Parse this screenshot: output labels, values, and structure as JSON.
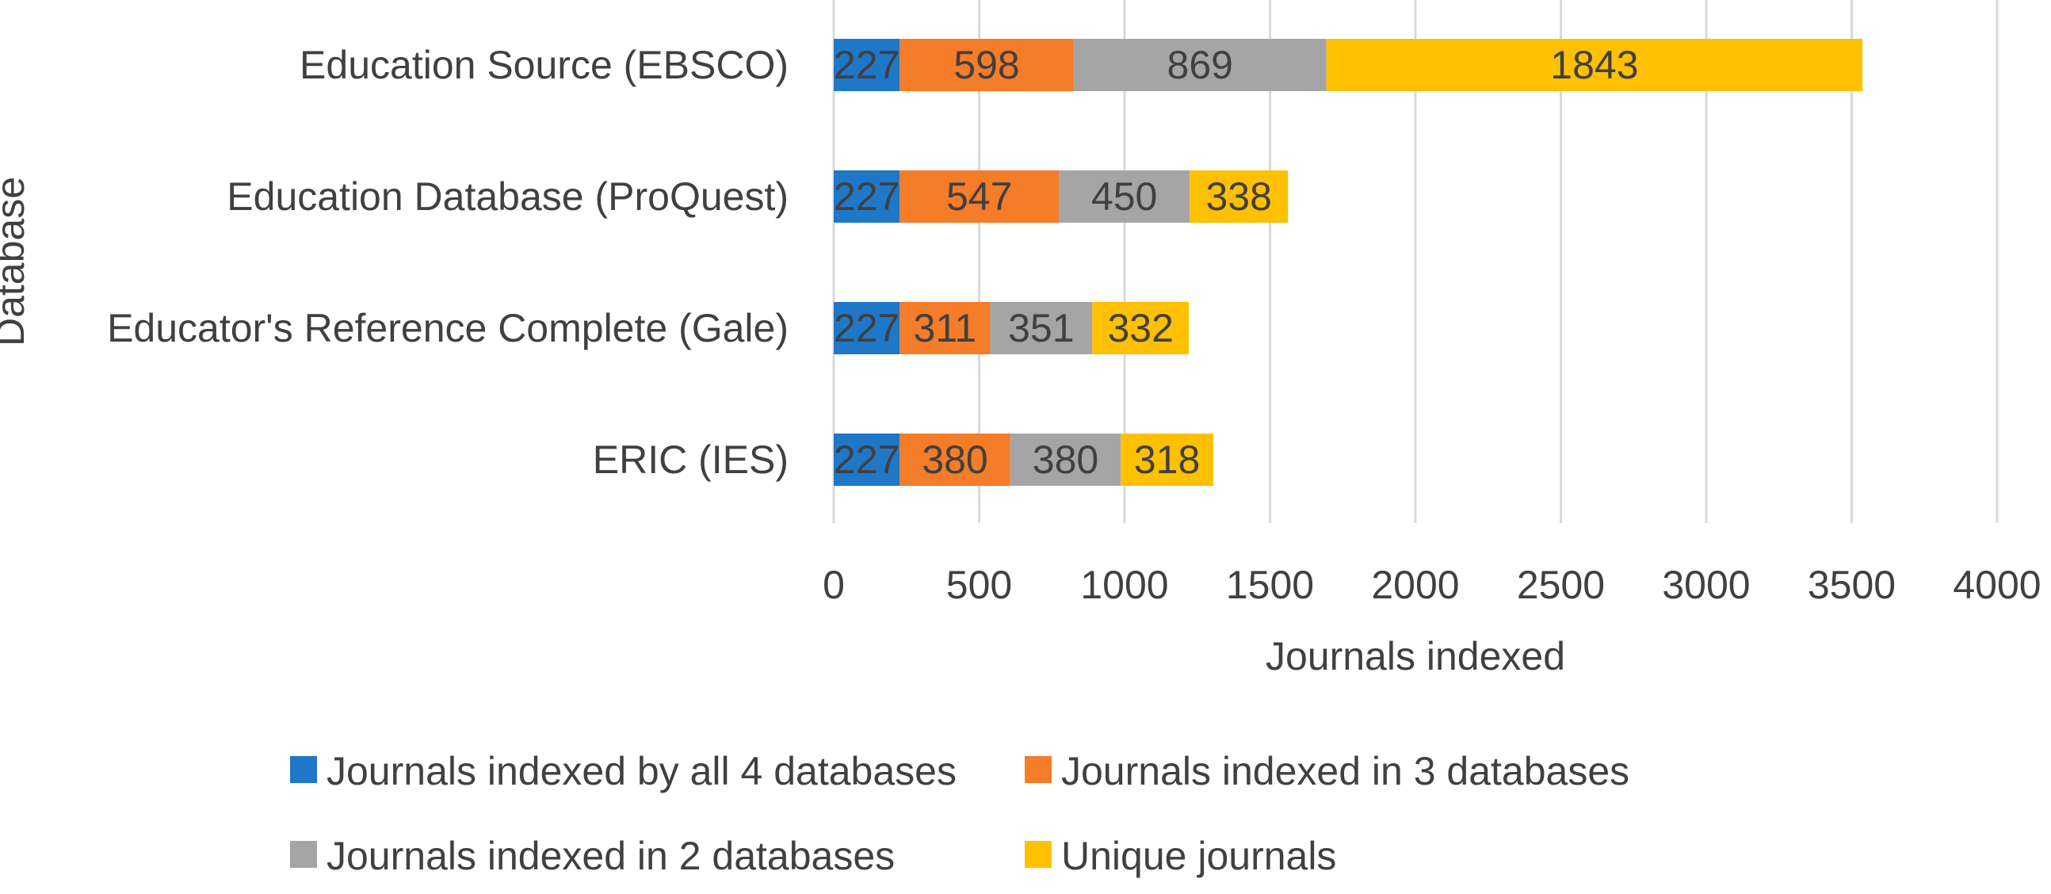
{
  "chart_data": {
    "type": "bar",
    "orientation": "horizontal",
    "stacked": true,
    "categories": [
      "Education Source (EBSCO)",
      "Education Database (ProQuest)",
      "Educator's Reference Complete (Gale)",
      "ERIC (IES)"
    ],
    "series": [
      {
        "name": "Journals indexed by all 4 databases",
        "values": [
          227,
          227,
          227,
          227
        ],
        "color": "#1f77c8"
      },
      {
        "name": "Journals indexed in 3 databases",
        "values": [
          598,
          547,
          311,
          380
        ],
        "color": "#f57c28"
      },
      {
        "name": "Journals indexed in 2 databases",
        "values": [
          869,
          450,
          351,
          380
        ],
        "color": "#a5a5a5"
      },
      {
        "name": "Unique journals",
        "values": [
          1843,
          338,
          332,
          318
        ],
        "color": "#ffc000"
      }
    ],
    "xlabel": "Journals indexed",
    "ylabel": "Database",
    "xlim": [
      0,
      4000
    ],
    "xticks": [
      "0",
      "500",
      "1000",
      "1500",
      "2000",
      "2500",
      "3000",
      "3500",
      "4000"
    ],
    "grid": true,
    "legend_position": "bottom"
  }
}
